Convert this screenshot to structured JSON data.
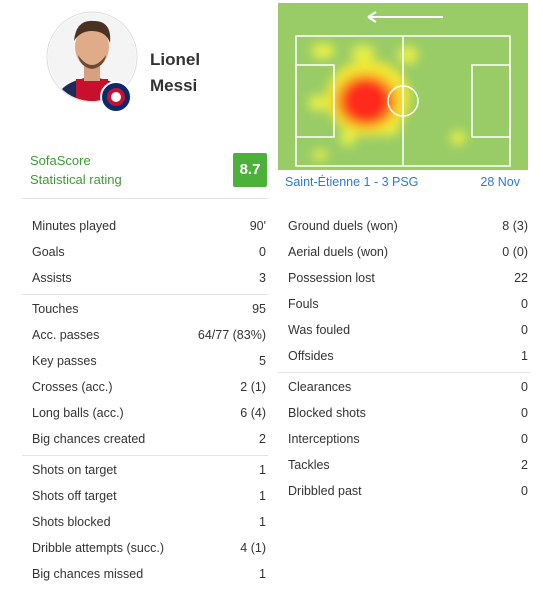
{
  "player": {
    "first_name": "Lionel",
    "last_name": "Messi"
  },
  "rating": {
    "label_1": "SofaScore",
    "label_2": "Statistical rating",
    "value": "8.7"
  },
  "match": {
    "result": "Saint-Étienne 1 - 3 PSG",
    "date": "28 Nov"
  },
  "left_stats": [
    [
      {
        "label": "Minutes played",
        "value": "90'"
      },
      {
        "label": "Goals",
        "value": 0
      },
      {
        "label": "Assists",
        "value": 3
      }
    ],
    [
      {
        "label": "Touches",
        "value": 95
      },
      {
        "label": "Acc. passes",
        "value": "64/77 (83%)"
      },
      {
        "label": "Key passes",
        "value": 5
      },
      {
        "label": "Crosses (acc.)",
        "value": "2 (1)"
      },
      {
        "label": "Long balls (acc.)",
        "value": "6 (4)"
      },
      {
        "label": "Big chances created",
        "value": 2
      }
    ],
    [
      {
        "label": "Shots on target",
        "value": 1
      },
      {
        "label": "Shots off target",
        "value": 1
      },
      {
        "label": "Shots blocked",
        "value": 1
      },
      {
        "label": "Dribble attempts (succ.)",
        "value": "4 (1)"
      },
      {
        "label": "Big chances missed",
        "value": 1
      }
    ]
  ],
  "right_stats": [
    [
      {
        "label": "Ground duels (won)",
        "value": "8 (3)"
      },
      {
        "label": "Aerial duels (won)",
        "value": "0 (0)"
      },
      {
        "label": "Possession lost",
        "value": 22
      },
      {
        "label": "Fouls",
        "value": 0
      },
      {
        "label": "Was fouled",
        "value": 0
      },
      {
        "label": "Offsides",
        "value": 1
      }
    ],
    [
      {
        "label": "Clearances",
        "value": 0
      },
      {
        "label": "Blocked shots",
        "value": 0
      },
      {
        "label": "Interceptions",
        "value": 0
      },
      {
        "label": "Tackles",
        "value": 2
      },
      {
        "label": "Dribbled past",
        "value": 0
      }
    ]
  ]
}
